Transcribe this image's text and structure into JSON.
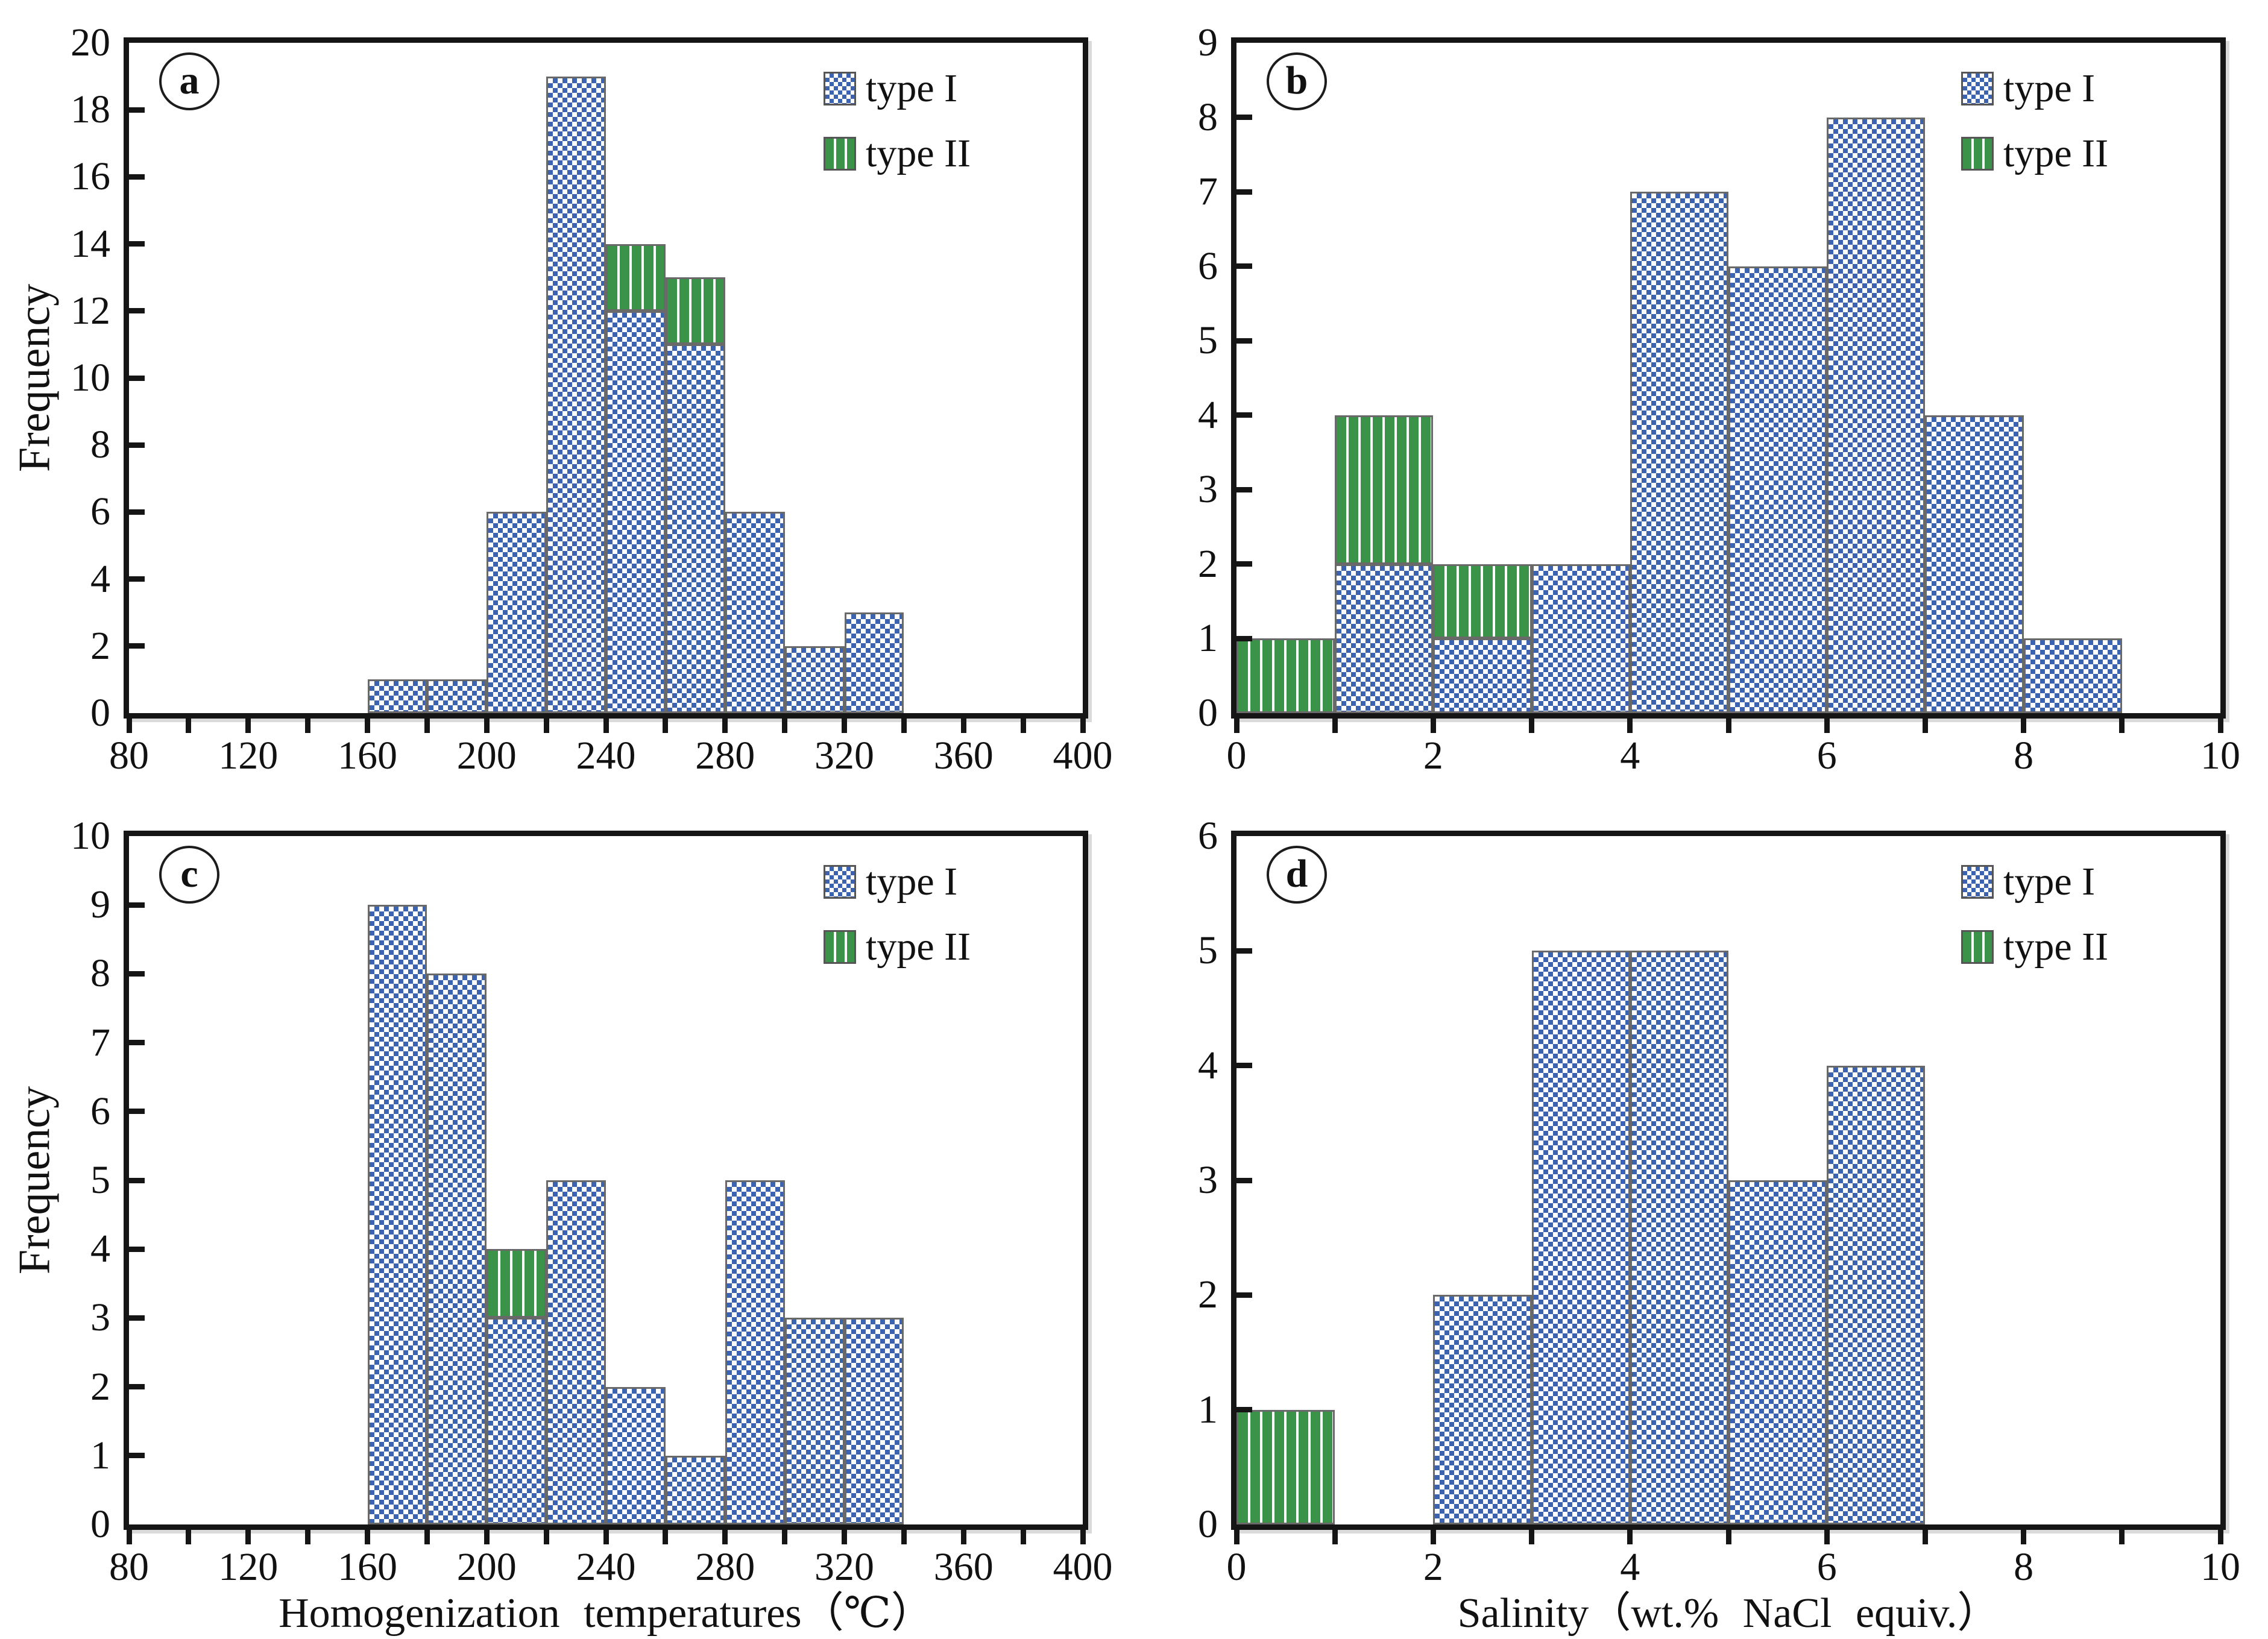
{
  "figure": {
    "background": "#ffffff",
    "axis_color": "#151515",
    "text_color": "#111111",
    "colors": {
      "type1_blue": "#3b63af",
      "type2_green": "#3b9349",
      "bar_border": "#696969"
    },
    "legend": {
      "type1_label": "type I",
      "type2_label": "type II"
    }
  },
  "chart_data": [
    {
      "type": "bar",
      "subtype": "stacked-histogram",
      "panel_letter": "a",
      "x_axis": {
        "min": 80,
        "max": 400,
        "tick_step": 20,
        "label_step": 40,
        "title": ""
      },
      "y_axis": {
        "min": 0,
        "max": 20,
        "tick_step": 2,
        "label_step": 2,
        "title": "Frequency"
      },
      "bin_start": 160,
      "bin_width": 20,
      "series": [
        {
          "name": "type I",
          "pattern": "blue-checker",
          "values": [
            1,
            1,
            6,
            19,
            12,
            11,
            6,
            2,
            3
          ]
        },
        {
          "name": "type II",
          "pattern": "green-stripes",
          "values": [
            0,
            0,
            0,
            0,
            2,
            2,
            0,
            0,
            0
          ]
        }
      ]
    },
    {
      "type": "bar",
      "subtype": "stacked-histogram",
      "panel_letter": "b",
      "x_axis": {
        "min": 0,
        "max": 10,
        "tick_step": 1,
        "label_step": 2,
        "title": ""
      },
      "y_axis": {
        "min": 0,
        "max": 9,
        "tick_step": 1,
        "label_step": 1,
        "title": ""
      },
      "bin_start": 0,
      "bin_width": 1,
      "series": [
        {
          "name": "type I",
          "pattern": "blue-checker",
          "values": [
            0,
            2,
            1,
            2,
            7,
            6,
            8,
            4,
            1
          ]
        },
        {
          "name": "type II",
          "pattern": "green-stripes",
          "values": [
            1,
            2,
            1,
            0,
            0,
            0,
            0,
            0,
            0
          ]
        }
      ]
    },
    {
      "type": "bar",
      "subtype": "stacked-histogram",
      "panel_letter": "c",
      "x_axis": {
        "min": 80,
        "max": 400,
        "tick_step": 20,
        "label_step": 40,
        "title": "Homogenization temperatures（℃）"
      },
      "y_axis": {
        "min": 0,
        "max": 10,
        "tick_step": 1,
        "label_step": 1,
        "title": "Frequency"
      },
      "bin_start": 160,
      "bin_width": 20,
      "series": [
        {
          "name": "type I",
          "pattern": "blue-checker",
          "values": [
            9,
            8,
            3,
            5,
            2,
            1,
            5,
            3,
            3
          ]
        },
        {
          "name": "type II",
          "pattern": "green-stripes",
          "values": [
            0,
            0,
            1,
            0,
            0,
            0,
            0,
            0,
            0
          ]
        }
      ]
    },
    {
      "type": "bar",
      "subtype": "stacked-histogram",
      "panel_letter": "d",
      "x_axis": {
        "min": 0,
        "max": 10,
        "tick_step": 1,
        "label_step": 2,
        "title": "Salinity（wt.% NaCl equiv.）"
      },
      "y_axis": {
        "min": 0,
        "max": 6,
        "tick_step": 1,
        "label_step": 1,
        "title": ""
      },
      "bin_start": 0,
      "bin_width": 1,
      "series": [
        {
          "name": "type I",
          "pattern": "blue-checker",
          "values": [
            0,
            0,
            2,
            5,
            5,
            3,
            4
          ]
        },
        {
          "name": "type II",
          "pattern": "green-stripes",
          "values": [
            1,
            0,
            0,
            0,
            0,
            0,
            0
          ]
        }
      ]
    }
  ]
}
